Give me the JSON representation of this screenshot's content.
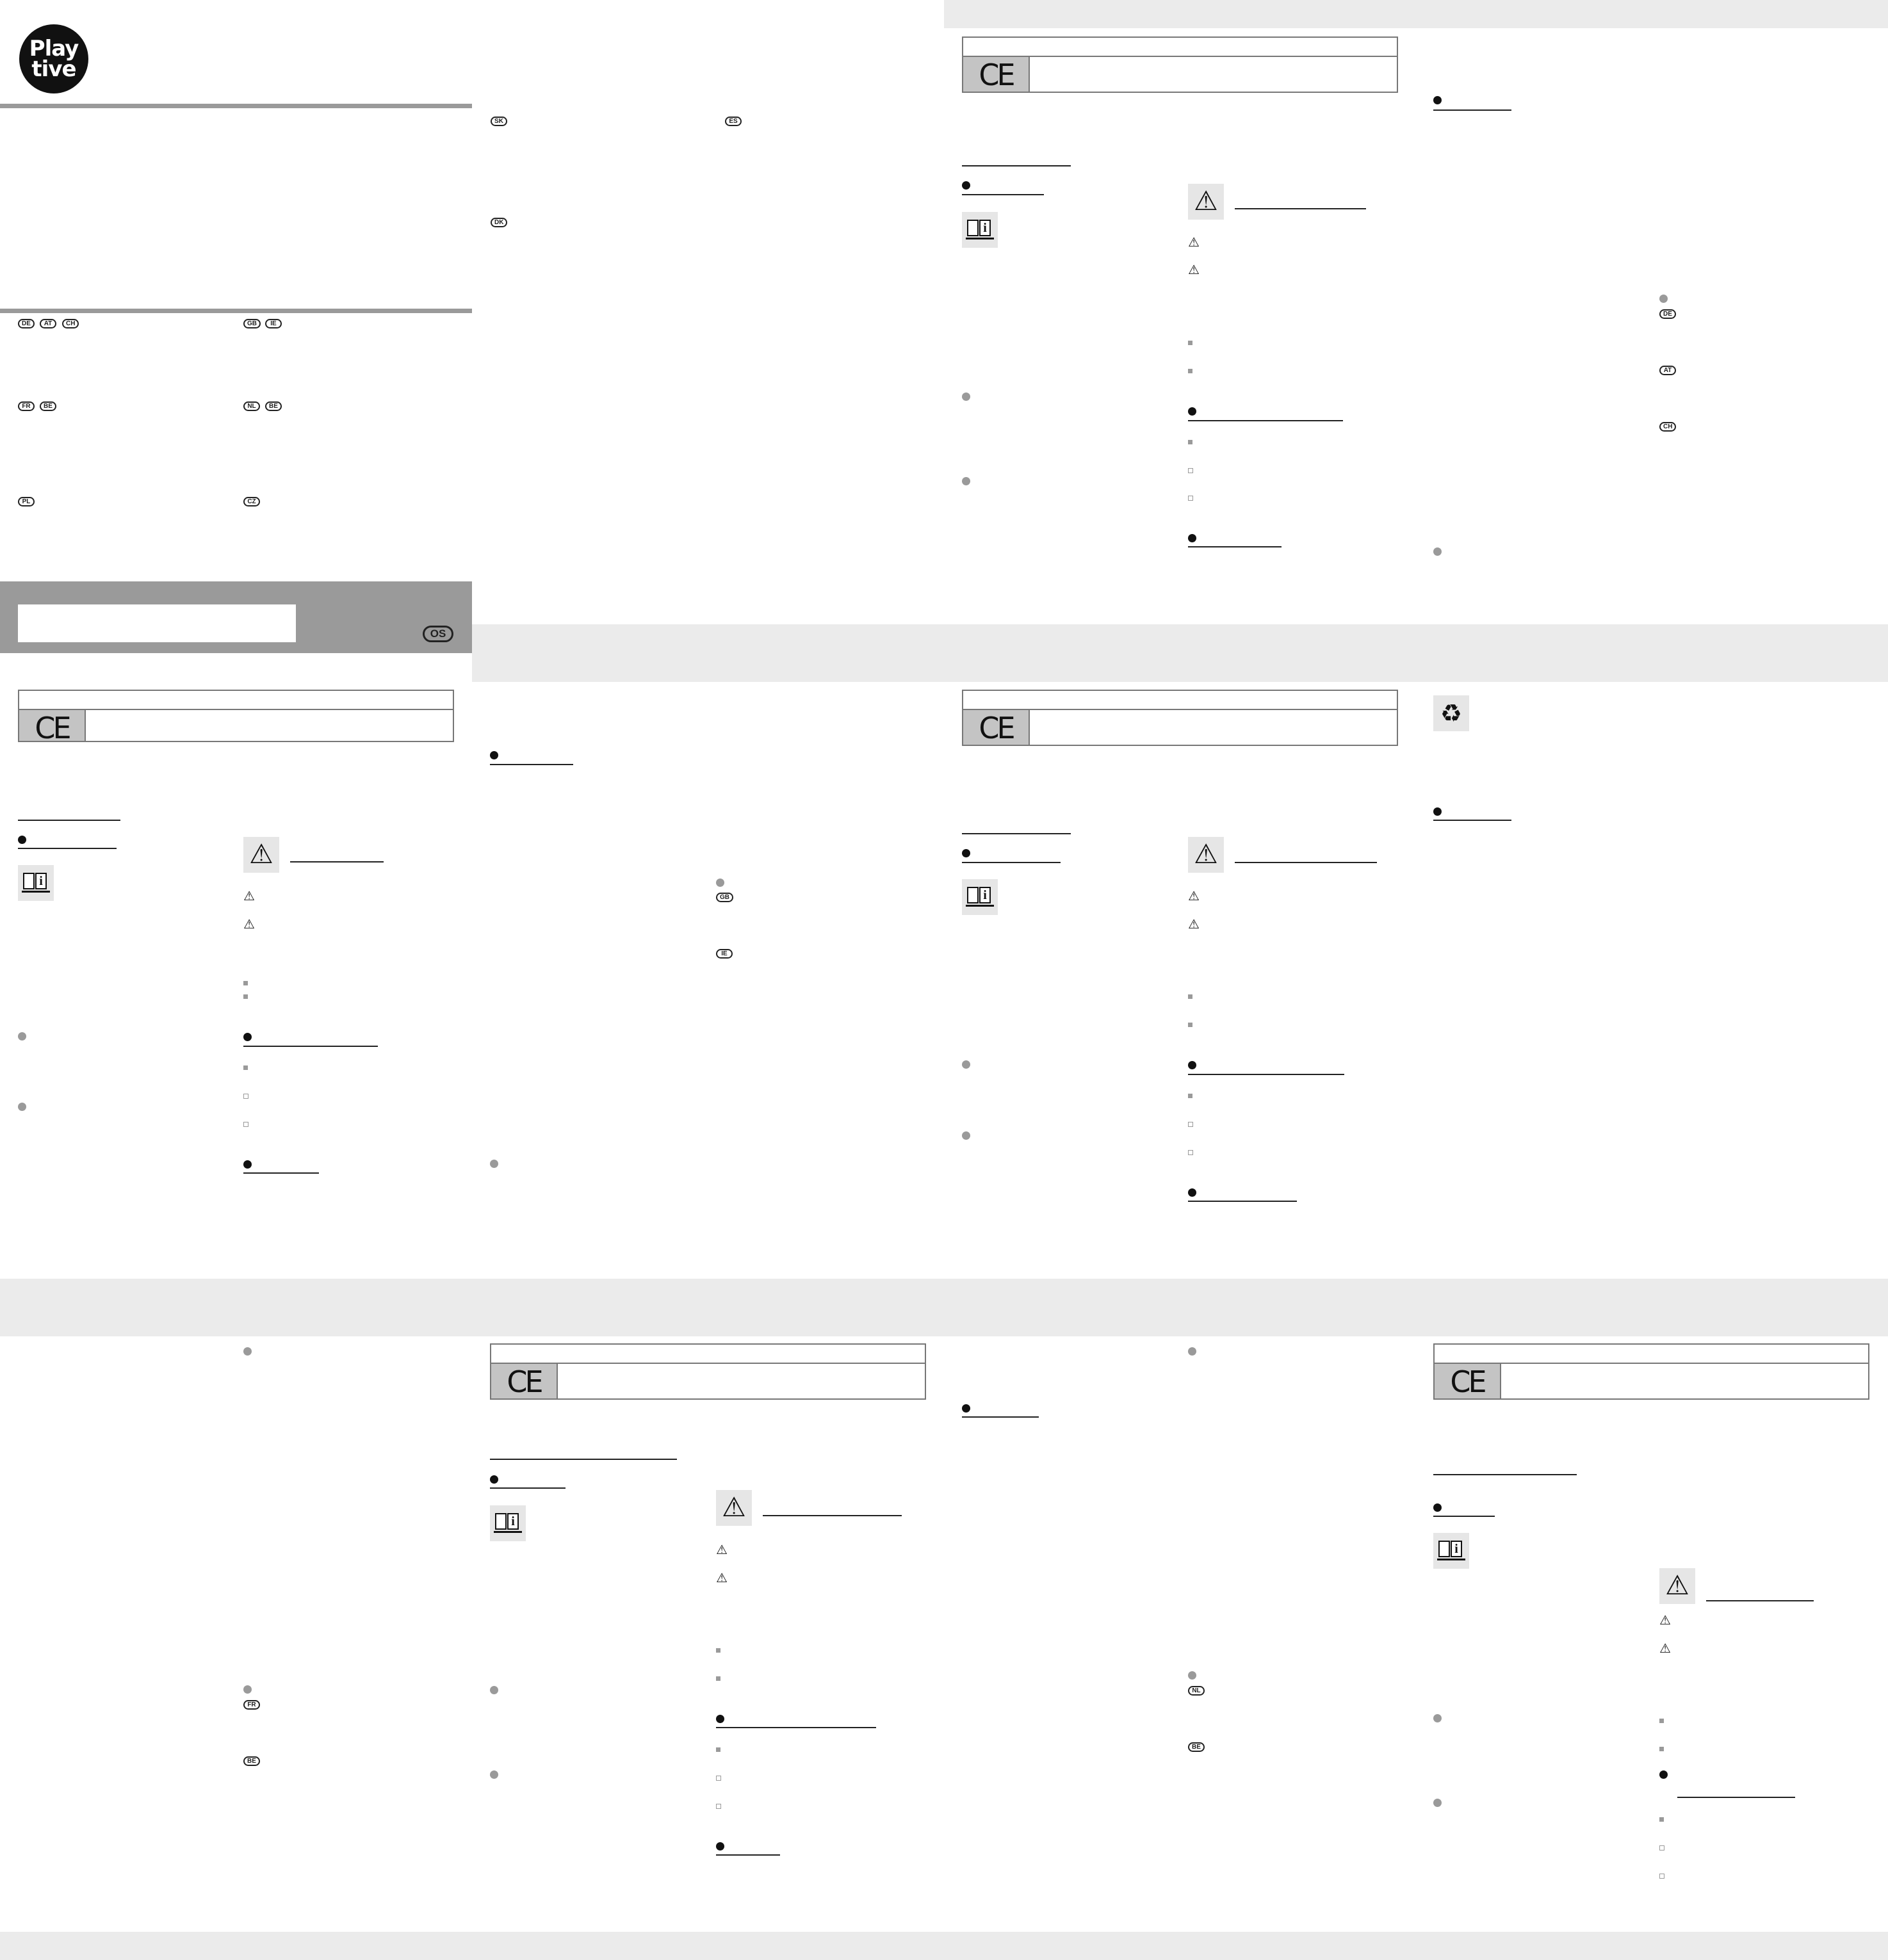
{
  "brand": {
    "logo_line1": "Play",
    "logo_line2": "tive"
  },
  "country_codes": {
    "de": "DE",
    "at": "AT",
    "ch": "CH",
    "gb": "GB",
    "ie": "IE",
    "fr": "FR",
    "be": "BE",
    "nl": "NL",
    "pl": "PL",
    "cz": "CZ",
    "sk": "SK",
    "es": "ES",
    "dk": "DK",
    "os": "OS"
  },
  "icons": {
    "ce_mark": "CE",
    "warning": "⚠",
    "info": "i",
    "recycle": "♻"
  },
  "colors": {
    "band_gray": "#ebebeb",
    "cover_gray": "#9a9a9a",
    "ce_gray": "#c4c4c4",
    "ink": "#111111"
  }
}
